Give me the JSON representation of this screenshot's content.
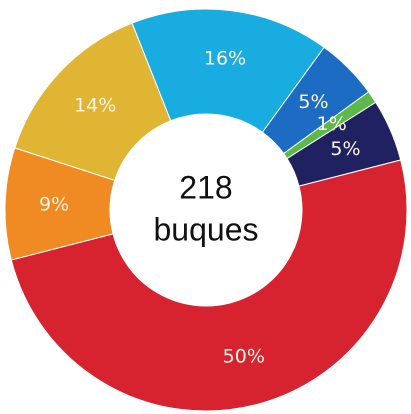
{
  "chart_data": {
    "type": "donut",
    "values": [
      16,
      5,
      1,
      5,
      50,
      9,
      14
    ],
    "value_labels": [
      "16%",
      "5%",
      "1%",
      "5%",
      "50%",
      "9%",
      "14%"
    ],
    "colors": [
      "#19ace0",
      "#1b6cc2",
      "#5cb84a",
      "#1f2160",
      "#d6232f",
      "#f08a23",
      "#dfb533"
    ],
    "center_label": [
      "218",
      "buques"
    ]
  }
}
